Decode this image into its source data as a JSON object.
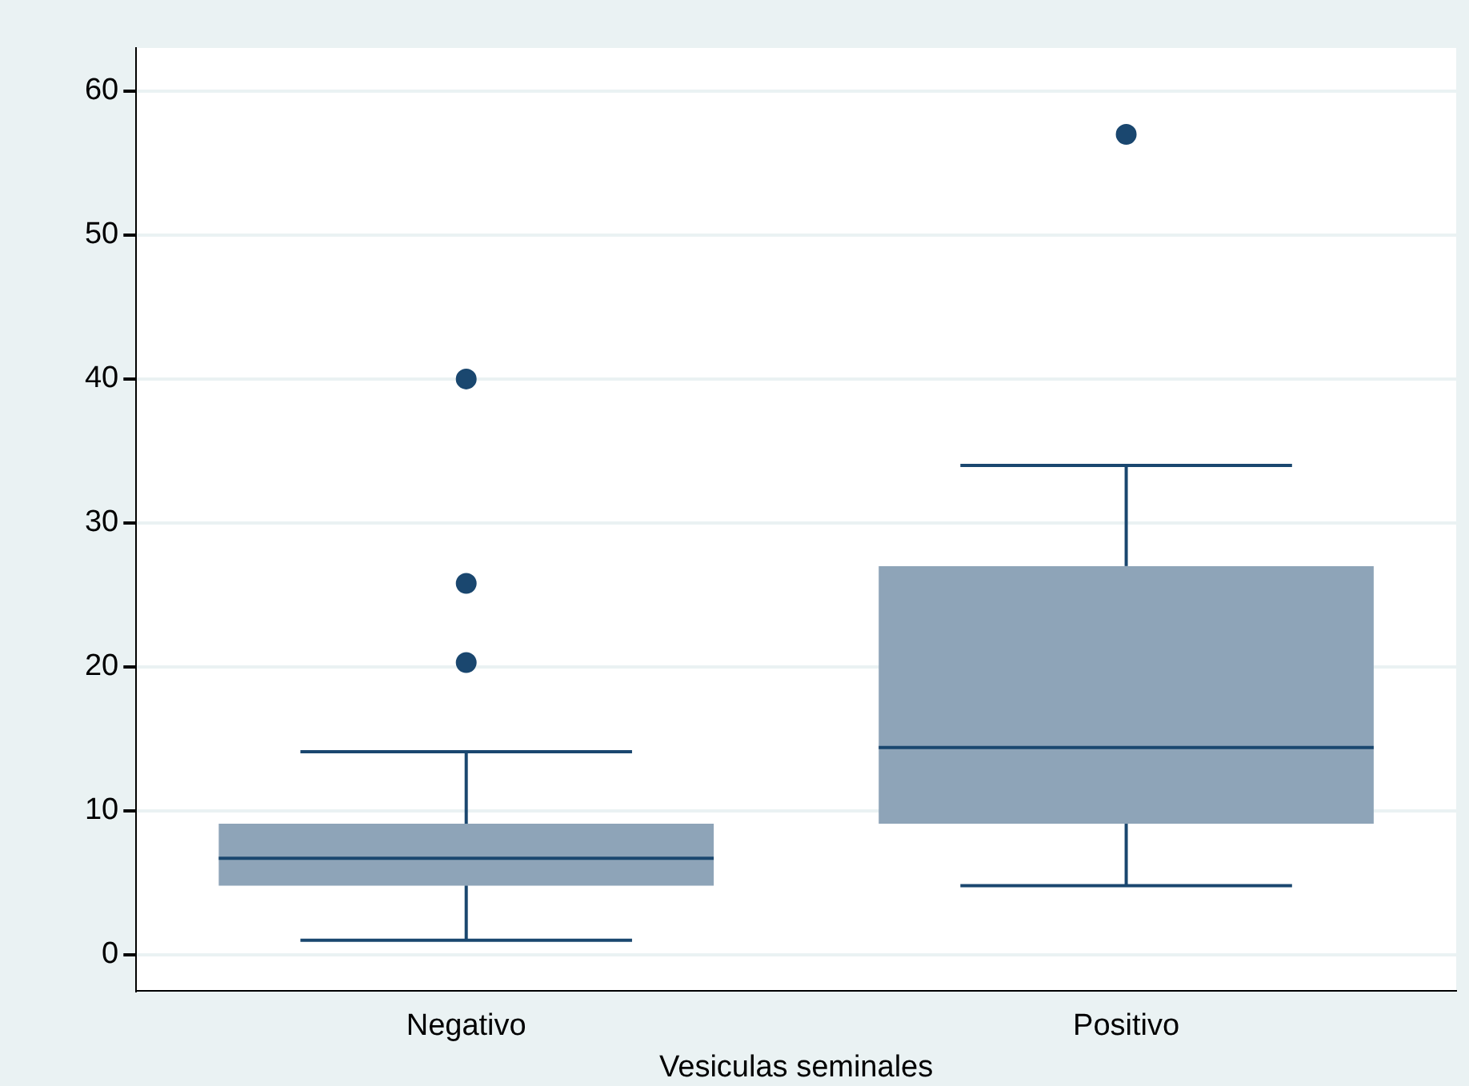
{
  "chart_data": {
    "type": "box",
    "xlabel": "Vesiculas seminales",
    "categories": [
      "Negativo",
      "Positivo"
    ],
    "series": [
      {
        "color": "#8ea4b8",
        "boxes": [
          {
            "low": 1.0,
            "q1": 4.8,
            "median": 6.7,
            "q3": 9.1,
            "high": 14.1,
            "outliers": [
              20.3,
              25.8,
              40
            ]
          },
          {
            "low": 4.8,
            "q1": 9.1,
            "median": 14.4,
            "q3": 27.0,
            "high": 34.0,
            "outliers": [
              57
            ]
          }
        ]
      }
    ],
    "ylim": [
      -2.5,
      63
    ],
    "yticks": [
      0,
      10,
      20,
      30,
      40,
      50,
      60
    ],
    "grid": "y",
    "legend": false
  }
}
